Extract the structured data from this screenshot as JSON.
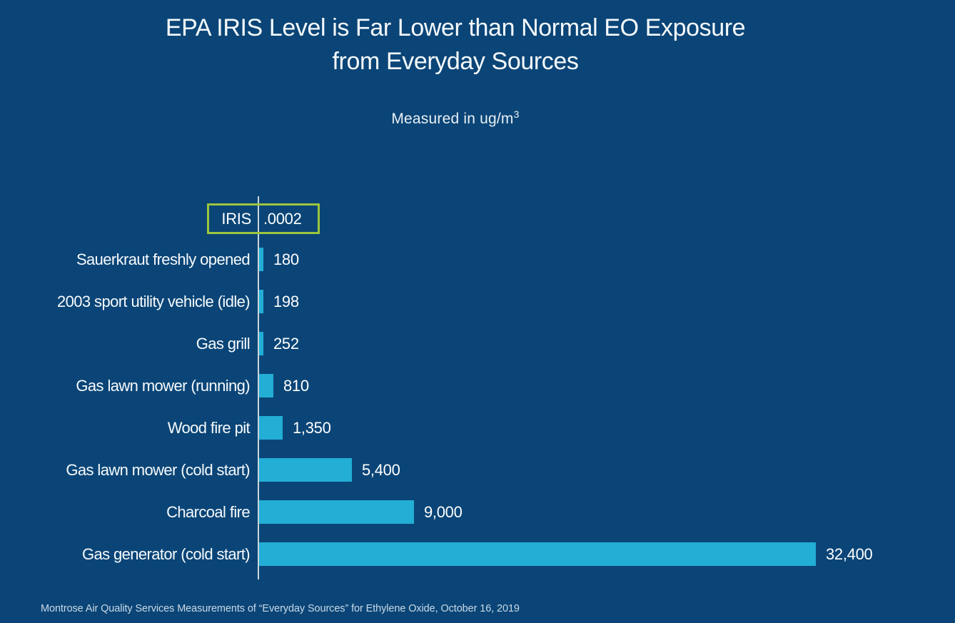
{
  "page": {
    "background_color": "#0B4577"
  },
  "header": {
    "title_line1": "EPA IRIS Level is Far Lower than Normal EO Exposure",
    "title_line2": "from Everyday Sources",
    "subtitle_prefix": "Measured in ug/m",
    "subtitle_superscript": "3"
  },
  "chart_data": {
    "type": "bar",
    "orientation": "horizontal",
    "title": "EPA IRIS Level is Far Lower than Normal EO Exposure from Everyday Sources",
    "subtitle": "Measured in ug/m3",
    "unit": "ug/m3",
    "categories": [
      "Sauerkraut freshly opened",
      "2003 sport utility vehicle (idle)",
      "Gas grill",
      "Gas lawn mower (running)",
      "Wood fire pit",
      "Gas lawn mower (cold start)",
      "Charcoal fire",
      "Gas generator (cold start)"
    ],
    "values": [
      180,
      198,
      252,
      810,
      1350,
      5400,
      9000,
      32400
    ],
    "value_labels": [
      "180",
      "198",
      "252",
      "810",
      "1,350",
      "5,400",
      "9,000",
      "32,400"
    ],
    "annotation": {
      "label": "IRIS",
      "value": ".0002",
      "border_color": "#9DC53E"
    },
    "xlim": [
      0,
      32400
    ],
    "grid": false,
    "legend": false,
    "bar_color": "#22AED5",
    "axis_color": "#CBD5DC",
    "background_color": "#0B4577",
    "text_color": "#FFFFFF"
  },
  "footer": {
    "source": "Montrose Air Quality Services Measurements of “Everyday Sources” for Ethylene Oxide, October 16, 2019"
  }
}
